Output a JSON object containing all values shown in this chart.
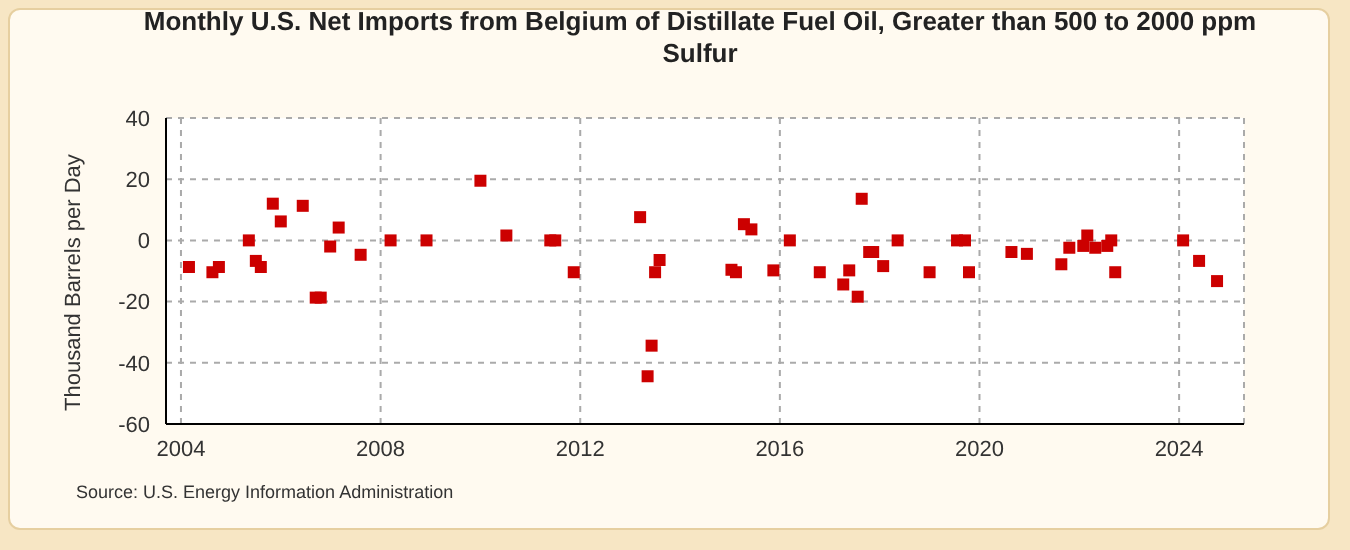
{
  "chart_data": {
    "type": "scatter",
    "title": "Monthly U.S. Net Imports from Belgium of Distillate Fuel Oil, Greater than 500 to 2000 ppm Sulfur",
    "ylabel": "Thousand Barrels per Day",
    "annotations": [
      "Source: U.S. Energy Information Administration"
    ],
    "x": [
      2004.16,
      2004.63,
      2004.76,
      2005.36,
      2005.5,
      2005.6,
      2005.84,
      2006.0,
      2006.44,
      2006.7,
      2006.8,
      2006.99,
      2007.16,
      2007.6,
      2008.2,
      2008.92,
      2010.0,
      2010.52,
      2011.4,
      2011.5,
      2011.87,
      2013.2,
      2013.35,
      2013.43,
      2013.5,
      2013.59,
      2015.03,
      2015.12,
      2015.28,
      2015.43,
      2015.87,
      2016.2,
      2016.8,
      2017.27,
      2017.39,
      2017.56,
      2017.64,
      2017.79,
      2017.87,
      2018.07,
      2018.36,
      2019.0,
      2019.55,
      2019.71,
      2019.79,
      2020.64,
      2020.95,
      2021.64,
      2021.8,
      2022.08,
      2022.16,
      2022.32,
      2022.56,
      2022.64,
      2022.72,
      2024.08,
      2024.4,
      2024.76
    ],
    "series": [
      {
        "color": "#cc0000",
        "values": [
          -8.7,
          -10.4,
          -8.7,
          0,
          -6.7,
          -8.7,
          12,
          6.2,
          11.3,
          -18.7,
          -18.7,
          -2,
          4.2,
          -4.7,
          0,
          0,
          19.5,
          1.6,
          0,
          0,
          -10.4,
          7.6,
          -44.4,
          -34.4,
          -10.4,
          -6.4,
          -9.6,
          -10.4,
          5.3,
          3.6,
          -9.8,
          0,
          -10.4,
          -14.4,
          -9.8,
          -18.4,
          13.6,
          -3.8,
          -3.8,
          -8.4,
          0,
          -10.4,
          0,
          0,
          -10.4,
          -3.8,
          -4.4,
          -7.8,
          -2.4,
          -1.8,
          1.6,
          -2.4,
          -1.8,
          0,
          -10.4,
          0,
          -6.7,
          -13.3
        ]
      }
    ],
    "xlim": [
      2003.7,
      2025.3
    ],
    "xticks": [
      2004,
      2008,
      2012,
      2016,
      2020,
      2024
    ],
    "ylim": [
      -60,
      40
    ],
    "yticks": [
      -60,
      -40,
      -20,
      0,
      20,
      40
    ],
    "grid": true,
    "marker": "square"
  }
}
